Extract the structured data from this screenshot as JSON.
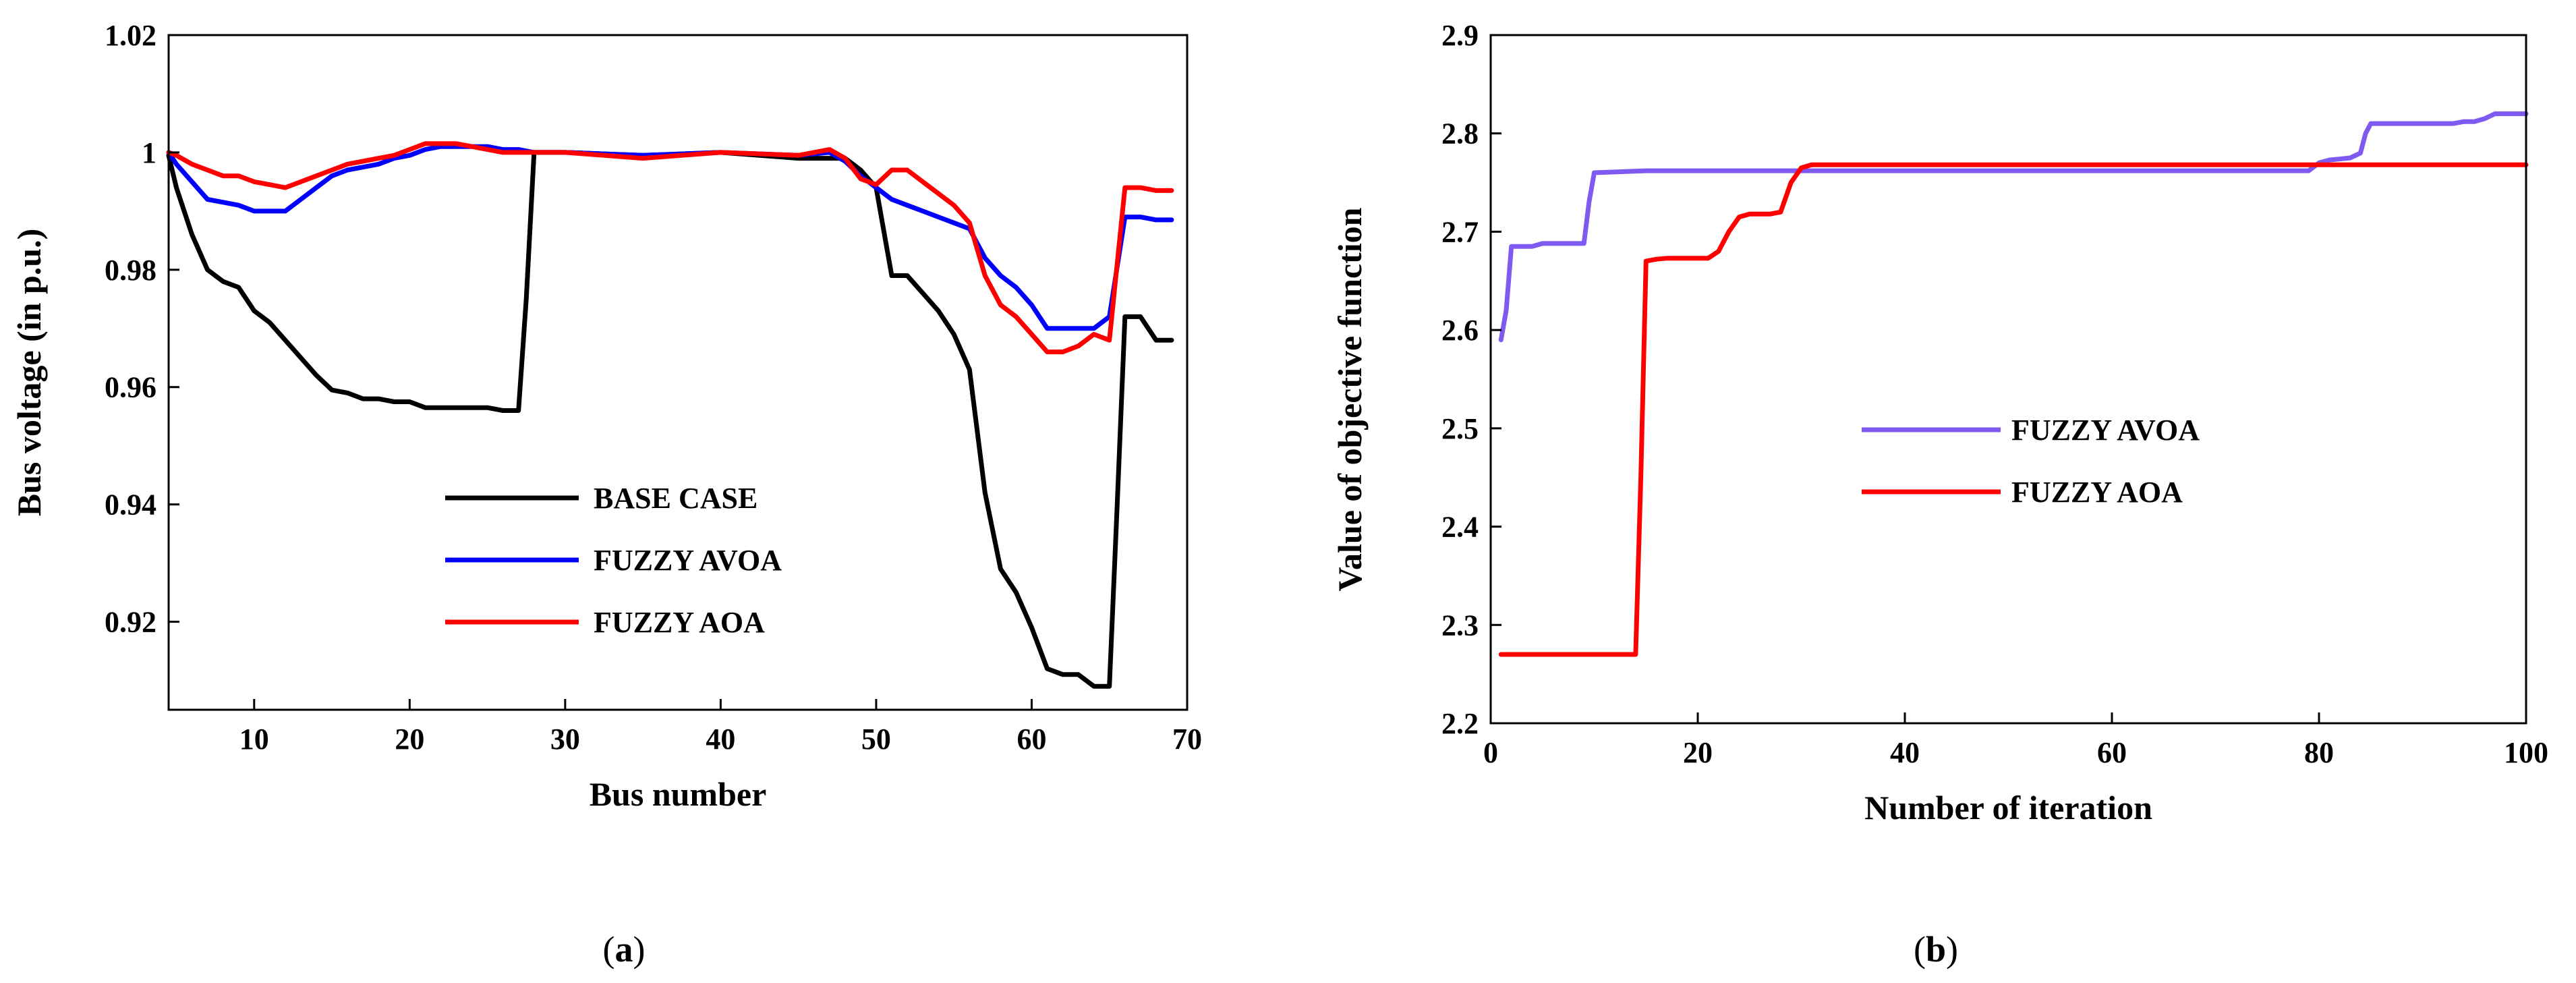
{
  "chart_data": [
    {
      "type": "line",
      "caption_letter": "a",
      "xlabel": "Bus number",
      "ylabel": "Bus voltage (in p.u.)",
      "xlim": [
        4.5,
        70
      ],
      "ylim": [
        0.905,
        1.02
      ],
      "xticks": [
        10,
        20,
        30,
        40,
        50,
        60,
        70
      ],
      "xtick_labels": [
        "10",
        "20",
        "30",
        "40",
        "50",
        "60",
        "70"
      ],
      "yticks": [
        0.92,
        0.94,
        0.96,
        0.98,
        1.0,
        1.02
      ],
      "ytick_labels": [
        "0.92",
        "0.94",
        "0.96",
        "0.98",
        "1",
        "1.02"
      ],
      "legend_position": "bottom-center",
      "series": [
        {
          "name": "BASE CASE",
          "color": "#000000",
          "x": [
            4.5,
            5,
            6,
            7,
            8,
            9,
            10,
            11,
            12,
            13,
            14,
            15,
            16,
            17,
            18,
            19,
            20,
            21,
            22,
            23,
            24,
            25,
            26,
            27,
            27.5,
            28,
            29,
            30,
            35,
            40,
            45,
            47,
            48,
            49,
            50,
            51,
            52,
            53,
            54,
            55,
            56,
            57,
            58,
            59,
            60,
            61,
            62,
            63,
            64,
            65,
            65.5,
            66,
            67,
            68,
            69
          ],
          "y": [
            0.9995,
            0.994,
            0.986,
            0.98,
            0.978,
            0.977,
            0.973,
            0.971,
            0.968,
            0.965,
            0.962,
            0.9595,
            0.959,
            0.958,
            0.958,
            0.9575,
            0.9575,
            0.9565,
            0.9565,
            0.9565,
            0.9565,
            0.9565,
            0.956,
            0.956,
            0.975,
            1.0,
            1.0,
            1.0,
            0.9995,
            1.0,
            0.999,
            0.999,
            0.999,
            0.997,
            0.994,
            0.979,
            0.979,
            0.976,
            0.973,
            0.969,
            0.963,
            0.942,
            0.929,
            0.925,
            0.919,
            0.912,
            0.911,
            0.911,
            0.909,
            0.909,
            0.94,
            0.972,
            0.972,
            0.968,
            0.968
          ]
        },
        {
          "name": "FUZZY AVOA",
          "color": "#0000ff",
          "x": [
            4.5,
            5,
            6,
            7,
            8,
            9,
            10,
            11,
            12,
            13,
            14,
            15,
            16,
            17,
            18,
            19,
            20,
            21,
            22,
            23,
            24,
            25,
            26,
            27,
            28,
            30,
            35,
            40,
            45,
            47,
            48,
            49,
            50,
            51,
            52,
            53,
            54,
            55,
            56,
            57,
            58,
            59,
            60,
            61,
            62,
            63,
            64,
            65,
            66,
            67,
            68,
            69
          ],
          "y": [
            1.0,
            0.998,
            0.995,
            0.992,
            0.9915,
            0.991,
            0.99,
            0.99,
            0.99,
            0.992,
            0.994,
            0.996,
            0.997,
            0.9975,
            0.998,
            0.999,
            0.9995,
            1.0005,
            1.001,
            1.001,
            1.001,
            1.001,
            1.0005,
            1.0005,
            1.0,
            1.0,
            0.9995,
            1.0,
            0.9995,
            1.0,
            0.9985,
            0.996,
            0.994,
            0.992,
            0.991,
            0.99,
            0.989,
            0.988,
            0.987,
            0.982,
            0.979,
            0.977,
            0.974,
            0.97,
            0.97,
            0.97,
            0.97,
            0.972,
            0.989,
            0.989,
            0.9885,
            0.9885
          ]
        },
        {
          "name": "FUZZY AOA",
          "color": "#ff0000",
          "x": [
            4.5,
            5,
            6,
            7,
            8,
            9,
            10,
            11,
            12,
            13,
            14,
            15,
            16,
            17,
            18,
            19,
            20,
            21,
            22,
            23,
            24,
            25,
            26,
            27,
            28,
            30,
            35,
            40,
            45,
            47,
            48,
            49,
            50,
            51,
            52,
            53,
            54,
            55,
            56,
            57,
            58,
            59,
            60,
            61,
            62,
            63,
            64,
            65,
            66,
            67,
            68,
            69
          ],
          "y": [
            1.0,
            0.9995,
            0.998,
            0.997,
            0.996,
            0.996,
            0.995,
            0.9945,
            0.994,
            0.995,
            0.996,
            0.997,
            0.998,
            0.9985,
            0.999,
            0.9995,
            1.0005,
            1.0015,
            1.0015,
            1.0015,
            1.001,
            1.0005,
            1.0,
            1.0,
            1.0,
            1.0,
            0.999,
            1.0,
            0.9995,
            1.0005,
            0.999,
            0.9955,
            0.9945,
            0.997,
            0.997,
            0.995,
            0.993,
            0.991,
            0.988,
            0.979,
            0.974,
            0.972,
            0.969,
            0.966,
            0.966,
            0.967,
            0.969,
            0.968,
            0.994,
            0.994,
            0.9935,
            0.9935
          ]
        }
      ]
    },
    {
      "type": "line",
      "caption_letter": "b",
      "xlabel": "Number of iteration",
      "ylabel": "Value of objective function",
      "xlim": [
        0,
        100
      ],
      "ylim": [
        2.2,
        2.9
      ],
      "xticks": [
        0,
        20,
        40,
        60,
        80,
        100
      ],
      "xtick_labels": [
        "0",
        "20",
        "40",
        "60",
        "80",
        "100"
      ],
      "yticks": [
        2.2,
        2.3,
        2.4,
        2.5,
        2.6,
        2.7,
        2.8,
        2.9
      ],
      "ytick_labels": [
        "2.2",
        "2.3",
        "2.4",
        "2.5",
        "2.6",
        "2.7",
        "2.8",
        "2.9"
      ],
      "legend_position": "center",
      "series": [
        {
          "name": "FUZZY AVOA",
          "color": "#7f5af0",
          "x": [
            1,
            1.5,
            2,
            3,
            4,
            5,
            8,
            9,
            9.5,
            10,
            15,
            30,
            60,
            79,
            80,
            81,
            83,
            84,
            84.5,
            85,
            90,
            93,
            94,
            95,
            96,
            97,
            100
          ],
          "y": [
            2.59,
            2.62,
            2.685,
            2.685,
            2.685,
            2.688,
            2.688,
            2.688,
            2.73,
            2.76,
            2.762,
            2.762,
            2.762,
            2.762,
            2.77,
            2.773,
            2.775,
            2.78,
            2.8,
            2.81,
            2.81,
            2.81,
            2.812,
            2.812,
            2.815,
            2.82,
            2.82
          ]
        },
        {
          "name": "FUZZY AOA",
          "color": "#ff0000",
          "x": [
            1,
            5,
            10,
            13,
            14,
            14.5,
            15,
            16,
            17,
            20,
            21,
            22,
            23,
            24,
            25,
            27,
            28,
            29,
            30,
            31,
            32,
            40,
            60,
            80,
            100
          ],
          "y": [
            2.27,
            2.27,
            2.27,
            2.27,
            2.27,
            2.45,
            2.67,
            2.672,
            2.673,
            2.673,
            2.673,
            2.68,
            2.7,
            2.715,
            2.718,
            2.718,
            2.72,
            2.75,
            2.765,
            2.768,
            2.768,
            2.768,
            2.768,
            2.768,
            2.768
          ]
        }
      ]
    }
  ]
}
